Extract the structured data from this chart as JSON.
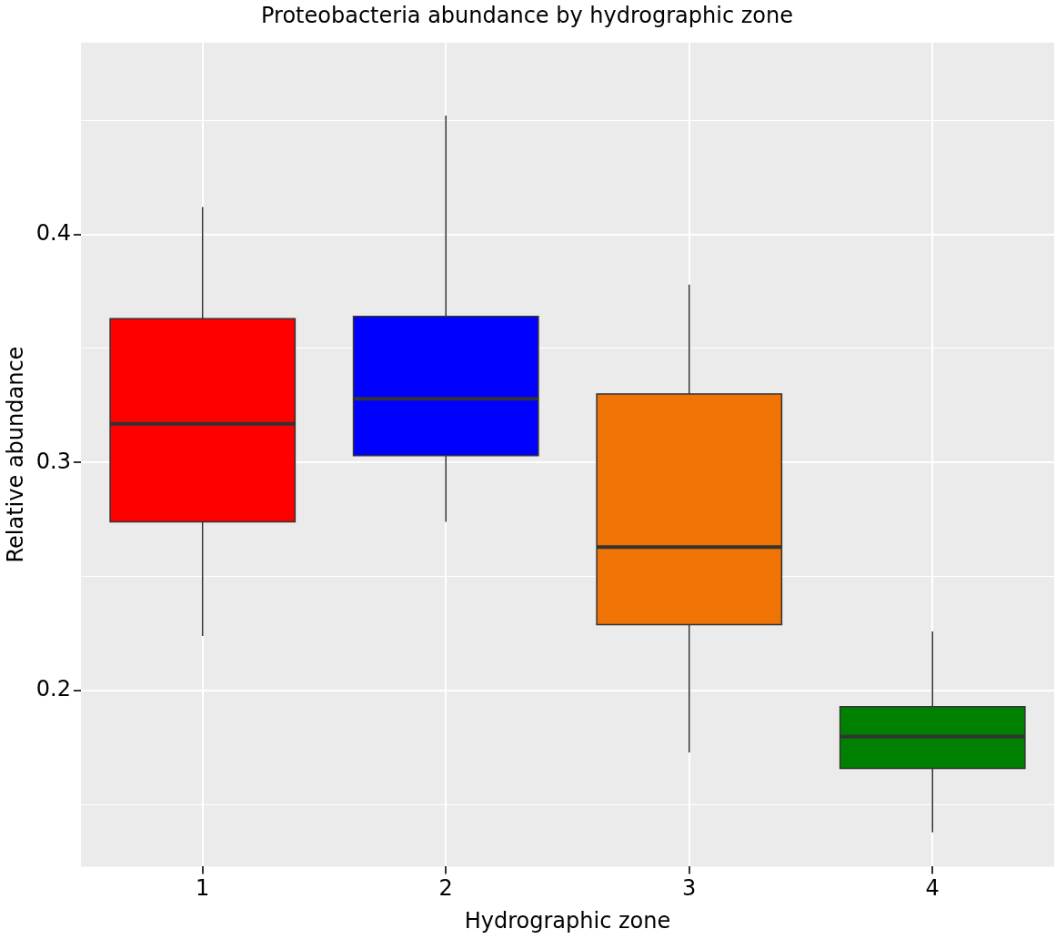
{
  "chart_data": {
    "type": "box",
    "title": "Proteobacteria abundance by hydrographic zone",
    "xlabel": "Hydrographic zone",
    "ylabel": "Relative abundance",
    "categories": [
      "1",
      "2",
      "3",
      "4"
    ],
    "boxes": [
      {
        "low": 0.224,
        "q1": 0.274,
        "median": 0.317,
        "q3": 0.363,
        "high": 0.412
      },
      {
        "low": 0.274,
        "q1": 0.303,
        "median": 0.328,
        "q3": 0.364,
        "high": 0.452
      },
      {
        "low": 0.173,
        "q1": 0.229,
        "median": 0.263,
        "q3": 0.33,
        "high": 0.378
      },
      {
        "low": 0.138,
        "q1": 0.166,
        "median": 0.18,
        "q3": 0.193,
        "high": 0.226
      }
    ],
    "colors": [
      "#ff0000",
      "#0000ff",
      "#f07306",
      "#008000"
    ],
    "ylim": [
      0.123,
      0.484
    ],
    "yticks": [
      {
        "value": 0.15,
        "label": null
      },
      0.2,
      {
        "value": 0.25,
        "label": null
      },
      0.3,
      {
        "value": 0.35,
        "label": null
      },
      0.4,
      {
        "value": 0.45,
        "label": null
      }
    ],
    "grid": true
  }
}
